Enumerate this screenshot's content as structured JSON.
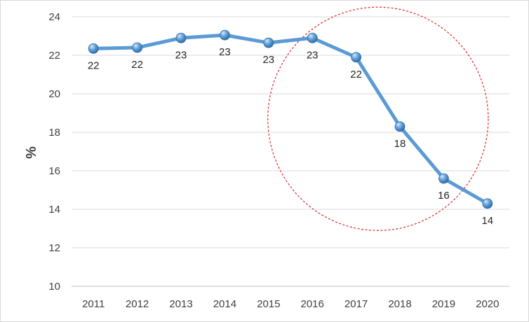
{
  "chart_data": {
    "type": "line",
    "title": "",
    "xlabel": "",
    "ylabel": "%",
    "x": [
      "2011",
      "2012",
      "2013",
      "2014",
      "2015",
      "2016",
      "2017",
      "2018",
      "2019",
      "2020"
    ],
    "series": [
      {
        "values": [
          22.35,
          22.4,
          22.9,
          23.05,
          22.65,
          22.9,
          21.9,
          18.3,
          15.6,
          14.3
        ],
        "data_labels": [
          "22",
          "22",
          "23",
          "23",
          "23",
          "23",
          "22",
          "18",
          "16",
          "14"
        ]
      }
    ],
    "ylim": [
      10,
      24
    ],
    "yticks": [
      "10",
      "12",
      "14",
      "16",
      "18",
      "20",
      "22",
      "24"
    ],
    "grid": true,
    "legend": "none",
    "line_color": "#5b9bd5",
    "marker_color": "#4f8ac9",
    "annotation": {
      "shape": "dashed-circle",
      "color": "#e0262b",
      "center_x": "2017.5",
      "center_y": 18.7,
      "radius_y": 5.8
    }
  }
}
